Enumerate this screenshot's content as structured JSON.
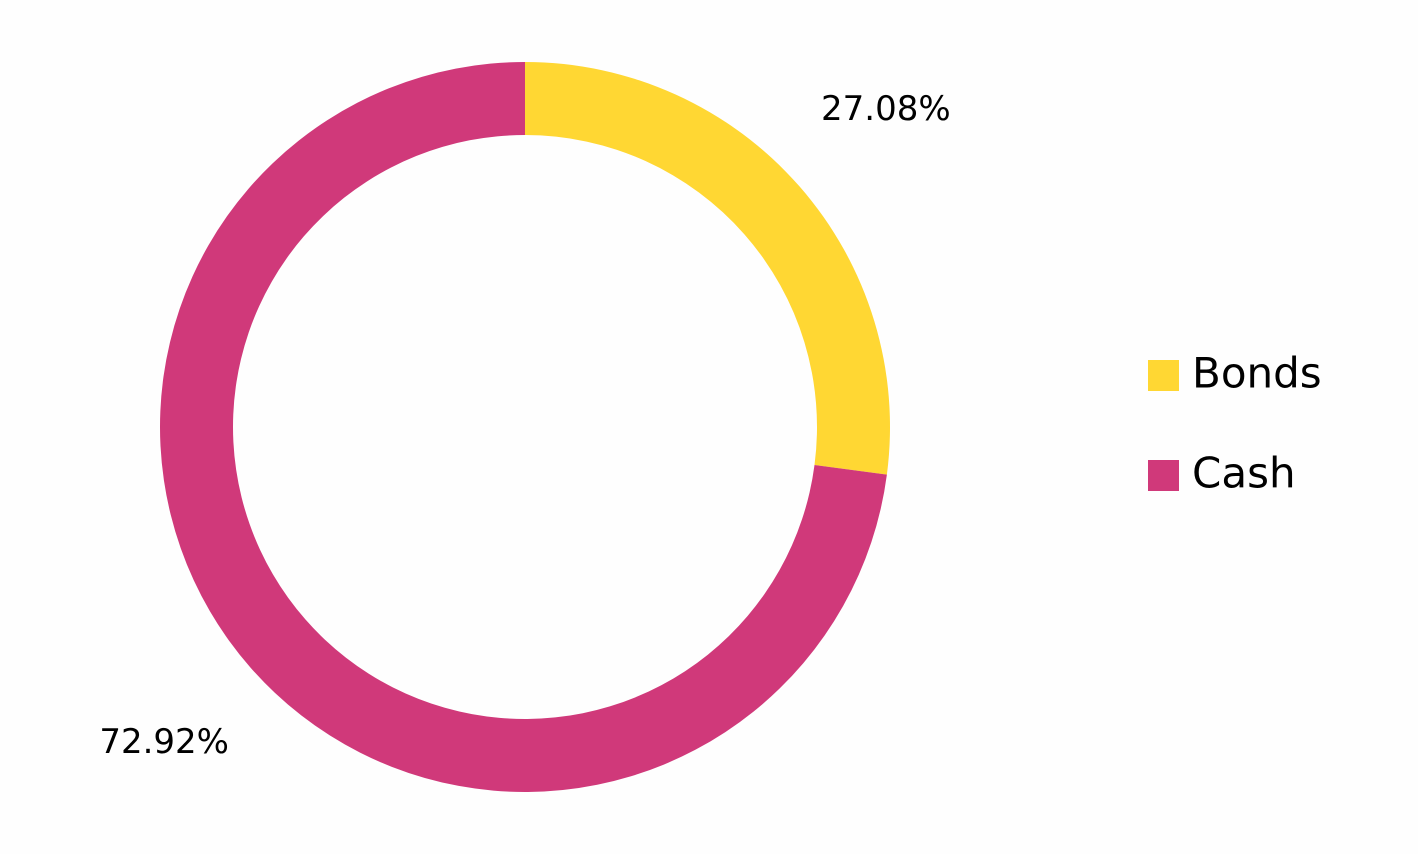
{
  "chart_data": {
    "type": "donut",
    "categories": [
      "Bonds",
      "Cash"
    ],
    "values": [
      27.08,
      72.92
    ],
    "value_labels": [
      "27.08%",
      "72.92%"
    ],
    "colors": [
      "#FFD733",
      "#D0397A"
    ],
    "legend": "right"
  }
}
